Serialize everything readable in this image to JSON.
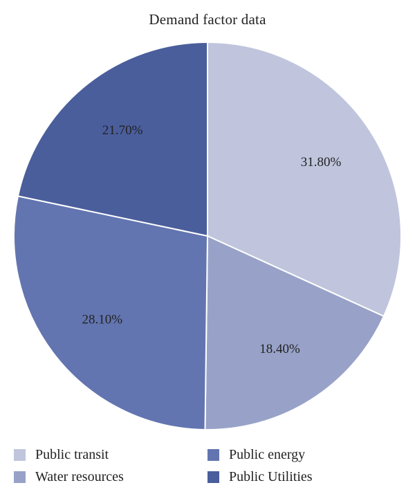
{
  "chart_data": {
    "type": "pie",
    "title": "Demand factor data",
    "slices": [
      {
        "name": "Public transit",
        "value": 31.8,
        "label": "31.80%",
        "color": "#c0c5dd"
      },
      {
        "name": "Water resources",
        "value": 18.4,
        "label": "18.40%",
        "color": "#98a2c8"
      },
      {
        "name": "Public energy",
        "value": 28.1,
        "label": "28.10%",
        "color": "#6375b0"
      },
      {
        "name": "Public Utilities",
        "value": 21.7,
        "label": "21.70%",
        "color": "#4a5e9c"
      }
    ],
    "start_angle": "12 o'clock",
    "direction": "clockwise",
    "legend_placement": "bottom"
  }
}
